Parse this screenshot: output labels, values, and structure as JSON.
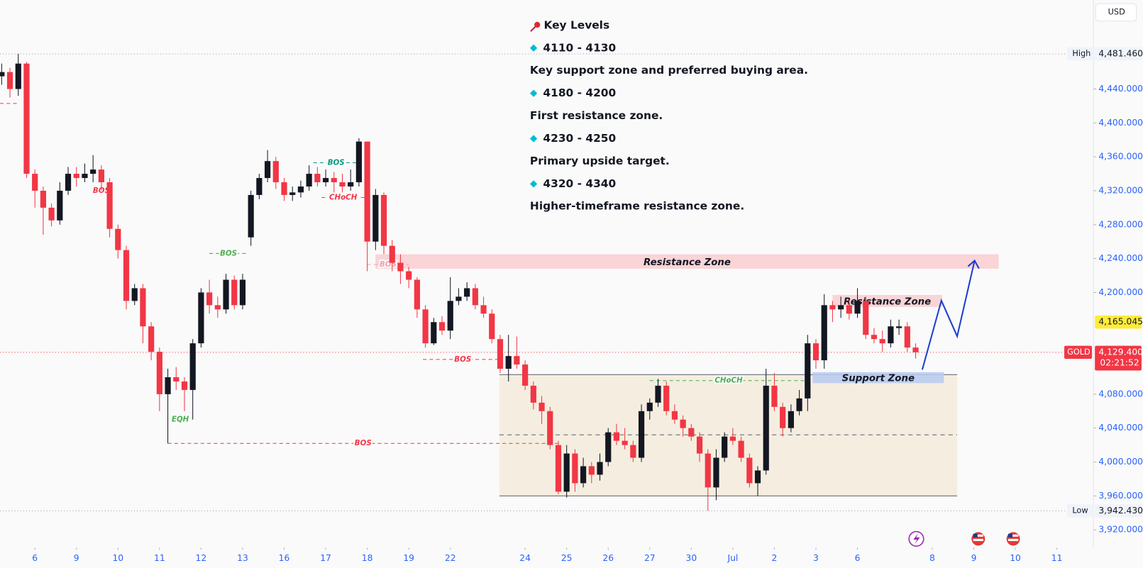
{
  "chart_data": {
    "type": "candlestick",
    "currency": "USD",
    "up_color": "#131722",
    "down_color": "#f23645",
    "open": [
      4455,
      4460,
      4440,
      4470,
      4340,
      4320,
      4300,
      4285,
      4320,
      4340,
      4335,
      4340,
      4345,
      4330,
      4275,
      4250,
      4190,
      4205,
      4160,
      4130,
      4080,
      4100,
      4095,
      4085,
      4140,
      4200,
      4185,
      4180,
      4215,
      4185,
      4265,
      4315,
      4335,
      4355,
      4330,
      4315,
      4318,
      4325,
      4340,
      4330,
      4335,
      4330,
      4325,
      4330,
      4378,
      4260,
      4315,
      4255,
      4235,
      4225,
      4215,
      4180,
      4140,
      4165,
      4155,
      4190,
      4195,
      4205,
      4185,
      4175,
      4145,
      4110,
      4125,
      4115,
      4090,
      4070,
      4060,
      4020,
      3965,
      4010,
      3975,
      3995,
      3985,
      4000,
      4035,
      4025,
      4020,
      4005,
      4060,
      4070,
      4090,
      4060,
      4050,
      4040,
      4030,
      4010,
      3970,
      4005,
      4030,
      4025,
      4005,
      3975,
      3990,
      4090,
      4065,
      4040,
      4060,
      4075,
      4140,
      4120,
      4185,
      4180,
      4185,
      4175,
      4190,
      4150,
      4145,
      4140,
      4158,
      4160,
      4135
    ],
    "high": [
      4470,
      4465,
      4481.46,
      4472,
      4345,
      4325,
      4305,
      4330,
      4348,
      4348,
      4352,
      4362,
      4350,
      4335,
      4280,
      4255,
      4210,
      4210,
      4165,
      4135,
      4110,
      4112,
      4100,
      4145,
      4205,
      4215,
      4195,
      4222,
      4220,
      4222,
      4320,
      4340,
      4368,
      4360,
      4335,
      4325,
      4332,
      4350,
      4348,
      4345,
      4342,
      4340,
      4345,
      4382,
      4378,
      4322,
      4318,
      4262,
      4245,
      4230,
      4218,
      4185,
      4170,
      4172,
      4218,
      4205,
      4212,
      4210,
      4195,
      4180,
      4150,
      4150,
      4148,
      4120,
      4095,
      4078,
      4065,
      4025,
      4020,
      4015,
      4005,
      4000,
      4010,
      4040,
      4045,
      4040,
      4025,
      4068,
      4075,
      4098,
      4095,
      4068,
      4055,
      4045,
      4035,
      4015,
      4015,
      4035,
      4040,
      4030,
      4010,
      3995,
      4110,
      4105,
      4070,
      4068,
      4085,
      4150,
      4145,
      4198,
      4190,
      4195,
      4192,
      4205,
      4195,
      4158,
      4155,
      4168,
      4168,
      4165,
      4140
    ],
    "low": [
      4445,
      4430,
      4432,
      4335,
      4300,
      4268,
      4278,
      4280,
      4315,
      4325,
      4330,
      4330,
      4320,
      4265,
      4240,
      4180,
      4185,
      4140,
      4120,
      4060,
      4022,
      4085,
      4060,
      4050,
      4135,
      4175,
      4170,
      4175,
      4180,
      4180,
      4255,
      4310,
      4330,
      4322,
      4308,
      4308,
      4312,
      4320,
      4325,
      4325,
      4318,
      4318,
      4320,
      4325,
      4225,
      4250,
      4245,
      4225,
      4210,
      4205,
      4170,
      4135,
      4138,
      4150,
      4145,
      4185,
      4190,
      4180,
      4170,
      4140,
      4105,
      4095,
      4110,
      4085,
      4062,
      4045,
      4015,
      3962,
      3958,
      3965,
      3970,
      3975,
      3978,
      3995,
      4020,
      4015,
      4000,
      4000,
      4050,
      4065,
      4055,
      4045,
      4030,
      4025,
      4000,
      3942.43,
      3955,
      4000,
      4020,
      4000,
      3970,
      3960,
      3985,
      4060,
      4030,
      4035,
      4055,
      4060,
      4110,
      4110,
      4165,
      4170,
      4168,
      4170,
      4145,
      4140,
      4130,
      4135,
      4150,
      4130,
      4122
    ],
    "close": [
      4460,
      4440,
      4470,
      4340,
      4320,
      4300,
      4285,
      4320,
      4340,
      4335,
      4340,
      4345,
      4330,
      4275,
      4250,
      4190,
      4205,
      4160,
      4130,
      4080,
      4100,
      4095,
      4085,
      4140,
      4200,
      4185,
      4180,
      4215,
      4185,
      4215,
      4315,
      4335,
      4355,
      4330,
      4315,
      4318,
      4325,
      4340,
      4330,
      4335,
      4330,
      4325,
      4330,
      4378,
      4260,
      4315,
      4255,
      4235,
      4225,
      4215,
      4180,
      4140,
      4165,
      4155,
      4190,
      4195,
      4205,
      4185,
      4175,
      4145,
      4110,
      4125,
      4115,
      4090,
      4070,
      4060,
      4020,
      3965,
      4010,
      3975,
      3995,
      3985,
      4000,
      4035,
      4025,
      4020,
      4005,
      4060,
      4070,
      4090,
      4060,
      4050,
      4040,
      4030,
      4010,
      3970,
      4005,
      4030,
      4025,
      4005,
      3975,
      3990,
      4090,
      4065,
      4040,
      4060,
      4075,
      4140,
      4120,
      4185,
      4180,
      4185,
      4175,
      4190,
      4150,
      4145,
      4140,
      4160,
      4160,
      4135,
      4129.4
    ],
    "xlim": [
      -0.2,
      131.4
    ],
    "ylim": [
      3899,
      4545
    ],
    "xticks": [
      {
        "value": 4,
        "label": "6"
      },
      {
        "value": 9,
        "label": "9"
      },
      {
        "value": 14,
        "label": "10"
      },
      {
        "value": 19,
        "label": "11"
      },
      {
        "value": 24,
        "label": "12"
      },
      {
        "value": 29,
        "label": "13"
      },
      {
        "value": 34,
        "label": "16"
      },
      {
        "value": 39,
        "label": "17"
      },
      {
        "value": 44,
        "label": "18"
      },
      {
        "value": 49,
        "label": "19"
      },
      {
        "value": 54,
        "label": "22"
      },
      {
        "value": 63,
        "label": "24"
      },
      {
        "value": 68,
        "label": "25"
      },
      {
        "value": 73,
        "label": "26"
      },
      {
        "value": 78,
        "label": "27"
      },
      {
        "value": 83,
        "label": "30"
      },
      {
        "value": 88,
        "label": "Jul"
      },
      {
        "value": 93,
        "label": "2"
      },
      {
        "value": 98,
        "label": "3"
      },
      {
        "value": 103,
        "label": "6"
      },
      {
        "value": 112,
        "label": "8"
      },
      {
        "value": 117,
        "label": "9"
      },
      {
        "value": 122,
        "label": "10"
      },
      {
        "value": 127,
        "label": "11"
      }
    ],
    "yticks": [
      {
        "value": 4440,
        "label": "4,440.000"
      },
      {
        "value": 4400,
        "label": "4,400.000"
      },
      {
        "value": 4360,
        "label": "4,360.000"
      },
      {
        "value": 4320,
        "label": "4,320.000"
      },
      {
        "value": 4280,
        "label": "4,280.000"
      },
      {
        "value": 4240,
        "label": "4,240.000"
      },
      {
        "value": 4200,
        "label": "4,200.000"
      },
      {
        "value": 4080,
        "label": "4,080.000"
      },
      {
        "value": 4040,
        "label": "4,040.000"
      },
      {
        "value": 4000,
        "label": "4,000.000"
      },
      {
        "value": 3960,
        "label": "3,960.000"
      },
      {
        "value": 3920,
        "label": "3,920.000"
      }
    ],
    "high_line": {
      "tag": "High",
      "value": 4481.46,
      "label": "4,481.460"
    },
    "low_line": {
      "tag": "Low",
      "value": 3942.43,
      "label": "3,942.430"
    },
    "last_price": {
      "symbol": "GOLD",
      "value": 4129.4,
      "label": "4,129.400",
      "countdown": "02:21:52",
      "color": "#f23645"
    },
    "alert_price": {
      "value": 4165.045,
      "label": "4,165.045",
      "color": "#ffeb3b"
    },
    "range_box": {
      "x": [
        59.9,
        115
      ],
      "y": [
        3960,
        4103
      ],
      "mid": 4032,
      "color": "#f5eee0"
    },
    "zones": [
      {
        "label": "Resistance Zone",
        "x": [
          45,
          120
        ],
        "y": [
          4228,
          4245
        ],
        "color": "#f9cdd0"
      },
      {
        "label": "Resistance Zone",
        "x": [
          100,
          113.2
        ],
        "y": [
          4183,
          4197
        ],
        "color": "#f9cdd0"
      },
      {
        "label": "Support Zone",
        "x": [
          97.6,
          113.4
        ],
        "y": [
          4093,
          4106
        ],
        "color": "#b7caf0"
      }
    ],
    "structure": [
      {
        "label": "BOS",
        "value": 4022,
        "x": [
          20,
          67
        ],
        "color": "#f23645"
      },
      {
        "label": "BOS",
        "value": 4121,
        "x": [
          50.7,
          60.3
        ],
        "color": "#f23645"
      },
      {
        "label": "BOS",
        "value": 4233,
        "x": [
          44,
          49
        ],
        "color": "#f4a0a6"
      },
      {
        "label": "CHoCH",
        "value": 4096,
        "x": [
          78,
          97
        ],
        "color": "#4caf50"
      },
      {
        "label": "BOS",
        "value": 4246,
        "x": [
          25,
          29.6
        ],
        "color": "#4caf50"
      },
      {
        "label": "BOS",
        "value": 4353,
        "x": [
          37.5,
          43
        ],
        "color": "#089981"
      },
      {
        "label": "CHoCH",
        "value": 4312,
        "x": [
          38.5,
          43.7
        ],
        "color": "#f23645"
      },
      {
        "label": "BOS",
        "value": 4320,
        "x": [
          11.5,
          12.5
        ],
        "color": "#f23645"
      },
      {
        "label": "EQH",
        "value": 4050,
        "x": [
          20.5,
          22.5
        ],
        "color": "#4caf50"
      },
      {
        "value": 4423,
        "x": [
          -0.2,
          2
        ],
        "color": "#f23645"
      }
    ],
    "projection": {
      "x": [
        110.8,
        113.1,
        115,
        117.1
      ],
      "y": [
        4108.9,
        4190.4,
        4148.3,
        4237.6
      ],
      "color": "#1e3fd0"
    },
    "notes": {
      "title": "Key Levels",
      "items": [
        {
          "range": "4110 - 4130",
          "text": "Key support zone and preferred buying area."
        },
        {
          "range": "4180 - 4200",
          "text": "First resistance zone."
        },
        {
          "range": "4230 - 4250",
          "text": "Primary upside target."
        },
        {
          "range": "4320 - 4340",
          "text": "Higher-timeframe resistance zone."
        }
      ]
    }
  }
}
